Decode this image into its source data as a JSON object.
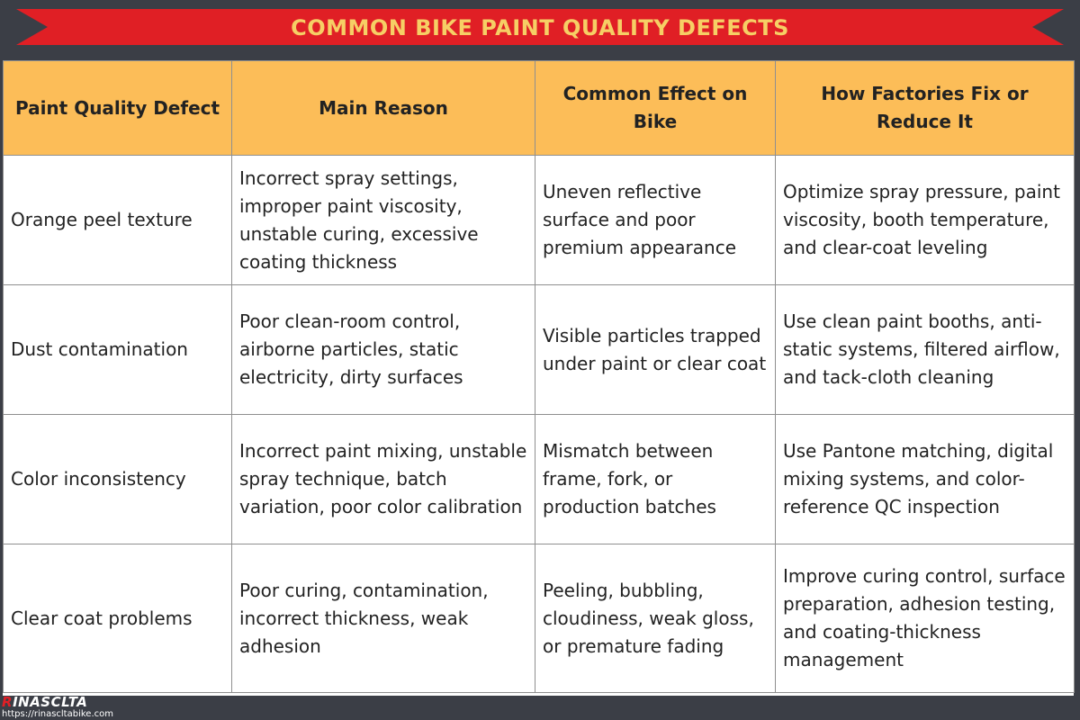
{
  "banner": {
    "title": "COMMON BIKE PAINT QUALITY DEFECTS"
  },
  "colors": {
    "banner": "#e01f25",
    "title_text": "#f6cf65",
    "header_bg": "#fcbd58",
    "background": "#3b3e46"
  },
  "table": {
    "headers": [
      "Paint Quality Defect",
      "Main Reason",
      "Common Effect on Bike",
      "How Factories Fix or Reduce It"
    ],
    "rows": [
      [
        "Orange peel texture",
        "Incorrect spray settings, improper paint viscosity, unstable curing, excessive coating thickness",
        "Uneven reflective surface and poor premium appearance",
        "Optimize spray pressure, paint viscosity, booth temperature, and clear-coat leveling"
      ],
      [
        "Dust contamination",
        "Poor clean-room control, airborne particles, static electricity, dirty surfaces",
        "Visible particles trapped under paint or clear coat",
        "Use clean paint booths, anti-static systems, filtered airflow, and tack-cloth cleaning"
      ],
      [
        "Color inconsistency",
        "Incorrect paint mixing, unstable spray technique, batch variation, poor color calibration",
        "Mismatch between frame, fork, or production batches",
        "Use Pantone matching, digital mixing systems, and color-reference QC inspection"
      ],
      [
        "Clear coat problems",
        "Poor curing, contamination, incorrect thickness, weak adhesion",
        "Peeling, bubbling, cloudiness, weak gloss, or premature fading",
        "Improve curing control, surface preparation, adhesion testing, and coating-thickness management"
      ]
    ]
  },
  "watermark": {
    "brand_first": "R",
    "brand_rest": "INASCLTA",
    "url": "https://rinascltabike.com"
  }
}
